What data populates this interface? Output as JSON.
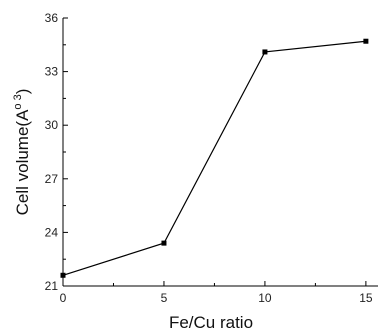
{
  "chart_data": {
    "type": "line",
    "xlabel": "Fe/Cu ratio",
    "ylabel": "Cell volume(A",
    "ylabel_sup": "o 3",
    "ylabel_close": ")",
    "xlim": [
      0,
      15.6
    ],
    "ylim": [
      21,
      36
    ],
    "xticks": [
      0,
      5,
      10,
      15
    ],
    "yticks": [
      21,
      24,
      27,
      30,
      33,
      36
    ],
    "xtick_labels": [
      "0",
      "5",
      "10",
      "15"
    ],
    "ytick_labels": [
      "21",
      "24",
      "27",
      "30",
      "33",
      "36"
    ],
    "x": [
      0,
      5,
      10,
      15
    ],
    "y": [
      21.6,
      23.4,
      34.1,
      34.7
    ],
    "grid": false,
    "marker": "square",
    "colors": {
      "line": "#000000",
      "axis": "#000000"
    }
  }
}
